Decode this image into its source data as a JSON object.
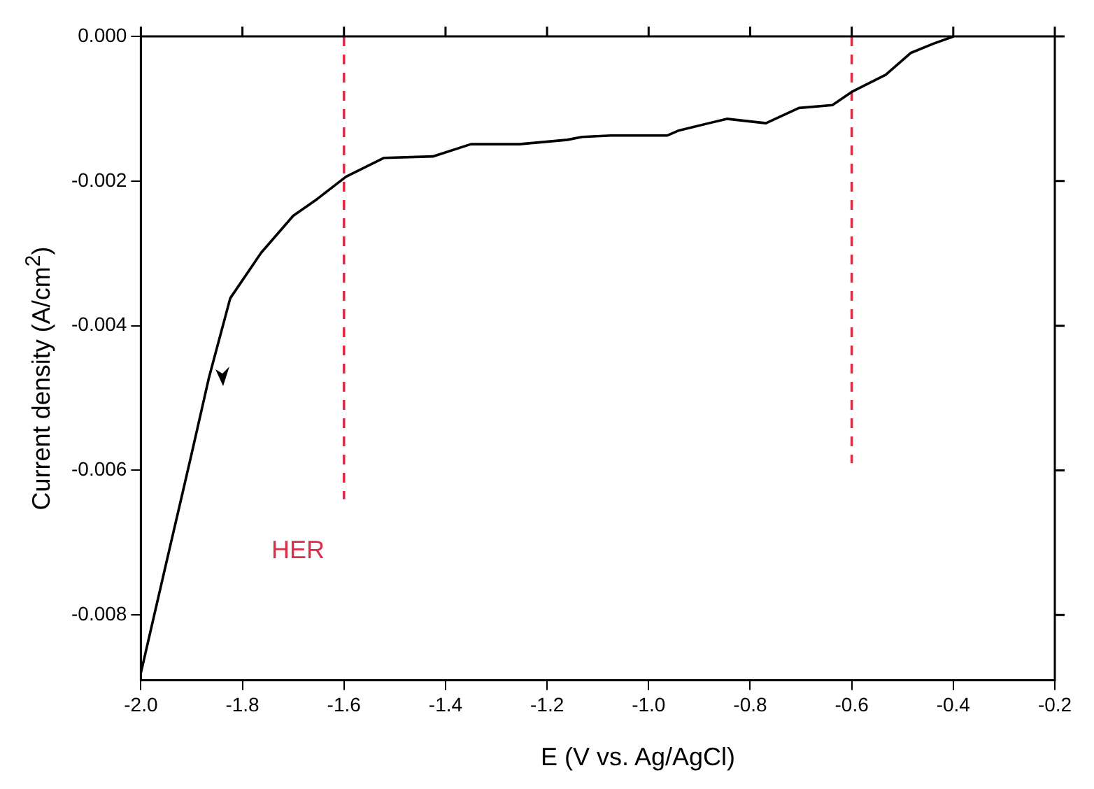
{
  "chart_data": {
    "type": "line",
    "xlabel": "E (V vs. Ag/AgCl)",
    "ylabel": "Current density (A/cm$^{2}$)",
    "xlim": [
      -2.0,
      -0.2
    ],
    "ylim": [
      -0.0089,
      0
    ],
    "xticks": [
      {
        "value": -2.0,
        "label": "-2.0"
      },
      {
        "value": -1.8,
        "label": "-1.8"
      },
      {
        "value": -1.6,
        "label": "-1.6"
      },
      {
        "value": -1.4,
        "label": "-1.4"
      },
      {
        "value": -1.2,
        "label": "-1.2"
      },
      {
        "value": -1.0,
        "label": "-1.0"
      },
      {
        "value": -0.8,
        "label": "-0.8"
      },
      {
        "value": -0.6,
        "label": "-0.6"
      },
      {
        "value": -0.4,
        "label": "-0.4"
      },
      {
        "value": -0.2,
        "label": "-0.2"
      }
    ],
    "yticks": [
      {
        "value": -0.008,
        "label": "-0.008"
      },
      {
        "value": -0.006,
        "label": "-0.006"
      },
      {
        "value": -0.004,
        "label": "-0.004"
      },
      {
        "value": -0.002,
        "label": "-0.002"
      },
      {
        "value": 0,
        "label": "0.000"
      }
    ],
    "grid": false,
    "legend": false,
    "marker": "none",
    "series": [
      {
        "color": "#000000",
        "line_style": "solid",
        "x": [
          -2.0,
          -1.95,
          -1.9,
          -1.866,
          -1.824,
          -1.763,
          -1.7,
          -1.653,
          -1.596,
          -1.521,
          -1.425,
          -1.35,
          -1.254,
          -1.16,
          -1.131,
          -1.074,
          -0.963,
          -0.94,
          -0.846,
          -0.769,
          -0.704,
          -0.638,
          -0.598,
          -0.533,
          -0.484,
          -0.439,
          -0.399
        ],
        "values": [
          -0.0088,
          -0.00728,
          -0.00577,
          -0.00472,
          -0.00362,
          -0.00299,
          -0.00248,
          -0.00225,
          -0.00194,
          -0.00168,
          -0.00166,
          -0.00149,
          -0.00149,
          -0.00143,
          -0.00139,
          -0.00137,
          -0.00137,
          -0.0013,
          -0.00114,
          -0.0012,
          -0.00099,
          -0.00095,
          -0.00076,
          -0.00053,
          -0.00023,
          -0.0001,
          0
        ]
      },
      {
        "color": "#d9304a",
        "line_style": "dashed",
        "x": [
          -1.6,
          -1.6
        ],
        "values": [
          0,
          -0.0064
        ]
      },
      {
        "color": "#d9304a",
        "line_style": "dashed",
        "x": [
          -0.6,
          -0.6
        ],
        "values": [
          0,
          -0.0059
        ]
      }
    ],
    "annotations": [
      "HER"
    ]
  }
}
